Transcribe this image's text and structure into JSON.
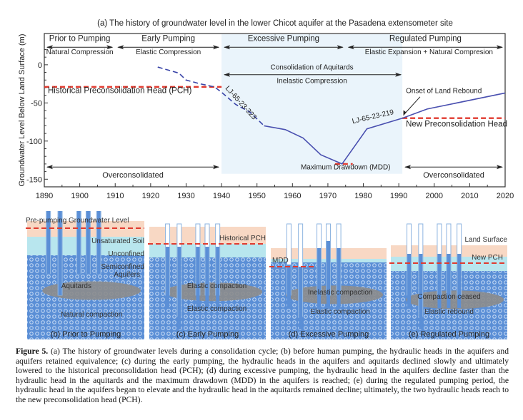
{
  "chart_data": {
    "type": "line",
    "title": "(a) The history of groundwater level in the lower Chicot aquifer at the Pasadena extensometer site",
    "xlabel": "",
    "ylabel": "Groundwater Level Below Land Surface (m)",
    "xlim": [
      1890,
      2020
    ],
    "ylim": [
      -160,
      41
    ],
    "xticks": [
      1890,
      1900,
      1910,
      1920,
      1930,
      1940,
      1950,
      1960,
      1970,
      1980,
      1990,
      2000,
      2010,
      2020
    ],
    "yticks": [
      0,
      -50,
      -100,
      -150
    ],
    "grid": false,
    "series": [
      {
        "name": "LJ-65-23-323",
        "style": "dashed",
        "color": "#3a45a8",
        "x": [
          1922,
          1928,
          1930,
          1934,
          1938,
          1940,
          1944,
          1948,
          1952
        ],
        "y": [
          -3,
          -11,
          -20,
          -25,
          -29,
          -36,
          -52,
          -62,
          -80
        ]
      },
      {
        "name": "LJ-65-23-219",
        "style": "solid",
        "color": "#4a50b0",
        "x": [
          1952,
          1958,
          1963,
          1968,
          1974,
          1981,
          1991,
          1998,
          2020
        ],
        "y": [
          -80,
          -85,
          -96,
          -118,
          -130,
          -84,
          -70,
          -58,
          -37
        ]
      }
    ],
    "reference_lines": [
      {
        "label": "Historical Preconsolidation Head (PCH)",
        "y": -29,
        "x": [
          1890,
          1940
        ],
        "color": "#e03a2f"
      },
      {
        "label": "New Preconsolidation Head",
        "y": -70,
        "x": [
          1991,
          2020
        ],
        "color": "#e03a2f"
      },
      {
        "label": "Maximum Drawdown (MDD)",
        "y": -130,
        "x": [
          1972,
          1977
        ],
        "color": "#e03a2f"
      }
    ],
    "shaded_region": {
      "x": [
        1940,
        1991
      ],
      "color": "#eaf4fb"
    },
    "periods": [
      {
        "label": "Prior to Pumping",
        "sub": "Natural Compression",
        "x": [
          1890,
          1910
        ]
      },
      {
        "label": "Early Pumping",
        "sub": "Elastic Compression",
        "x": [
          1910,
          1940
        ]
      },
      {
        "label": "Excessive Pumping",
        "sub": "",
        "x": [
          1940,
          1975
        ]
      },
      {
        "label": "Regulated Pumping",
        "sub": "Elastic Expansion + Natural Compresion",
        "x": [
          1975,
          2020
        ]
      }
    ],
    "consolidation": {
      "label": "Consolidation of Aquitards",
      "sub": "Inelastic Compression",
      "x": [
        1940,
        1991
      ]
    },
    "overconsolidated": [
      {
        "label": "Overconsolidated",
        "x": [
          1890,
          1940
        ]
      },
      {
        "label": "Overconsolidated",
        "x": [
          1991,
          2020
        ]
      }
    ],
    "annotation": "Onset of Land Rebound"
  },
  "panels": [
    {
      "caption": "(b) Prior to Pumping",
      "labels": [
        "Pre-pumping Groundwater Level",
        "Unsaturated Soil",
        "Unconfined",
        "Semiconfined",
        "Aquifers",
        "Aquitards",
        "Natural compaction"
      ]
    },
    {
      "caption": "(c) Early Pumping",
      "labels": [
        "Historical PCH",
        "Elastic compaction",
        "Elastic compaction"
      ]
    },
    {
      "caption": "(d) Excessive Pumping",
      "labels": [
        "MDD",
        "Inelastic compaction",
        "Elastic compaction"
      ]
    },
    {
      "caption": "(e) Regulated Pumping",
      "labels": [
        "Land Surface",
        "New PCH",
        "Compaction ceased",
        "Elastic rebound"
      ]
    }
  ],
  "caption": {
    "lead": "Figure 5.",
    "text": " (a) The history of groundwater levels during a consolidation cycle; (b) before human pumping, the hydraulic heads in the aquifers and aquifers retained equivalence; (c) during the early pumping, the hydraulic heads in the aquifers and aquitards declined slowly and ultimately lowered to the historical preconsolidation head (PCH); (d) during excessive pumping, the hydraulic head in the aquifers decline faster than the hydraulic head in the aquitards and the maximum drawdown (MDD) in the aquifers is reached; (e) during the regulated pumping period, the hydraulic head in the aquifers began to elevate and the hydraulic head in the aquitards remained decline; ultimately, the two hydraulic heads reach to the new preconsolidation head (PCH)."
  }
}
